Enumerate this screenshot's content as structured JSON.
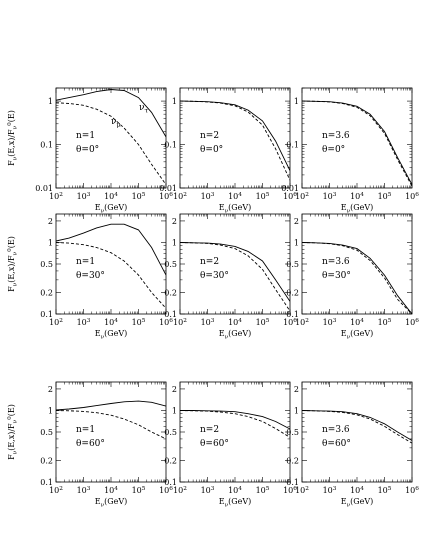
{
  "figure": {
    "row_ylabels": [
      "F_{ν}(E,x)/F_{ν}^0(E)",
      "F_{ν}(E,x)/F_{ν}^0(E)",
      "F_{ν}(E,x)/F_{ν}^0(E)"
    ],
    "xlabel": "E_{ν}(GeV)",
    "curve_labels": {
      "solid": "ν_{τ}",
      "dashed": "ν_{μ}"
    }
  },
  "chart_data": [
    {
      "type": "line",
      "row": 0,
      "col": 0,
      "annotation": [
        "n=1",
        "θ=0°"
      ],
      "show_curve_labels": true,
      "xscale": "log",
      "yscale": "log",
      "xlim": [
        100,
        1000000
      ],
      "ylim": [
        0.01,
        2
      ],
      "xticks": [
        100,
        1000,
        10000,
        100000,
        1000000
      ],
      "xtick_labels": [
        "10^2",
        "10^3",
        "10^4",
        "10^5",
        "10^6"
      ],
      "yticks": [
        0.01,
        0.1,
        1
      ],
      "ytick_labels": [
        "0.01",
        "0.1",
        "1"
      ],
      "series": [
        {
          "name": "ν_{τ}",
          "style": "solid",
          "x": [
            100,
            300,
            1000,
            3000,
            10000,
            30000,
            100000,
            300000,
            1000000
          ],
          "y": [
            1.05,
            1.2,
            1.4,
            1.65,
            1.85,
            1.75,
            1.2,
            0.55,
            0.15
          ]
        },
        {
          "name": "ν_{μ}",
          "style": "dashed",
          "x": [
            100,
            300,
            1000,
            3000,
            10000,
            30000,
            100000,
            300000,
            1000000
          ],
          "y": [
            0.92,
            0.88,
            0.8,
            0.65,
            0.45,
            0.24,
            0.1,
            0.035,
            0.012
          ]
        }
      ]
    },
    {
      "type": "line",
      "row": 0,
      "col": 1,
      "annotation": [
        "n=2",
        "θ=0°"
      ],
      "show_curve_labels": false,
      "xscale": "log",
      "yscale": "log",
      "xlim": [
        100,
        1000000
      ],
      "ylim": [
        0.01,
        2
      ],
      "xticks": [
        100,
        1000,
        10000,
        100000,
        1000000
      ],
      "xtick_labels": [
        "10^2",
        "10^3",
        "10^4",
        "10^5",
        "10^6"
      ],
      "yticks": [
        0.01,
        0.1,
        1
      ],
      "ytick_labels": [
        "0.01",
        "0.1",
        "1"
      ],
      "series": [
        {
          "name": "ν_{τ}",
          "style": "solid",
          "x": [
            100,
            300,
            1000,
            3000,
            10000,
            30000,
            100000,
            300000,
            1000000
          ],
          "y": [
            1.0,
            0.99,
            0.97,
            0.92,
            0.82,
            0.62,
            0.35,
            0.12,
            0.025
          ]
        },
        {
          "name": "ν_{μ}",
          "style": "dashed",
          "x": [
            100,
            300,
            1000,
            3000,
            10000,
            30000,
            100000,
            300000,
            1000000
          ],
          "y": [
            1.0,
            0.99,
            0.96,
            0.9,
            0.78,
            0.56,
            0.28,
            0.08,
            0.015
          ]
        }
      ]
    },
    {
      "type": "line",
      "row": 0,
      "col": 2,
      "annotation": [
        "n=3.6",
        "θ=0°"
      ],
      "show_curve_labels": false,
      "xscale": "log",
      "yscale": "log",
      "xlim": [
        100,
        1000000
      ],
      "ylim": [
        0.01,
        2
      ],
      "xticks": [
        100,
        1000,
        10000,
        100000,
        1000000
      ],
      "xtick_labels": [
        "10^2",
        "10^3",
        "10^4",
        "10^5",
        "10^6"
      ],
      "yticks": [
        0.01,
        0.1,
        1
      ],
      "ytick_labels": [
        "0.01",
        "0.1",
        "1"
      ],
      "series": [
        {
          "name": "ν_{τ}",
          "style": "solid",
          "x": [
            100,
            300,
            1000,
            3000,
            10000,
            30000,
            100000,
            300000,
            1000000
          ],
          "y": [
            1.0,
            0.99,
            0.97,
            0.9,
            0.76,
            0.5,
            0.2,
            0.05,
            0.012
          ]
        },
        {
          "name": "ν_{μ}",
          "style": "dashed",
          "x": [
            100,
            300,
            1000,
            3000,
            10000,
            30000,
            100000,
            300000,
            1000000
          ],
          "y": [
            1.0,
            0.99,
            0.96,
            0.88,
            0.72,
            0.46,
            0.18,
            0.045,
            0.011
          ]
        }
      ]
    },
    {
      "type": "line",
      "row": 1,
      "col": 0,
      "annotation": [
        "n=1",
        "θ=30°"
      ],
      "show_curve_labels": false,
      "xscale": "log",
      "yscale": "log",
      "xlim": [
        100,
        1000000
      ],
      "ylim": [
        0.1,
        2.5
      ],
      "xticks": [
        100,
        1000,
        10000,
        100000,
        1000000
      ],
      "xtick_labels": [
        "10^2",
        "10^3",
        "10^4",
        "10^5",
        "10^6"
      ],
      "yticks": [
        0.1,
        0.2,
        0.5,
        1,
        2
      ],
      "ytick_labels": [
        "0.1",
        "0.2",
        "0.5",
        "1",
        "2"
      ],
      "series": [
        {
          "name": "ν_{τ}",
          "style": "solid",
          "x": [
            100,
            300,
            1000,
            3000,
            10000,
            30000,
            100000,
            300000,
            1000000
          ],
          "y": [
            1.05,
            1.15,
            1.35,
            1.6,
            1.8,
            1.8,
            1.5,
            0.85,
            0.35
          ]
        },
        {
          "name": "ν_{μ}",
          "style": "dashed",
          "x": [
            100,
            300,
            1000,
            3000,
            10000,
            30000,
            100000,
            300000,
            1000000
          ],
          "y": [
            1.0,
            0.98,
            0.93,
            0.85,
            0.72,
            0.55,
            0.35,
            0.2,
            0.12
          ]
        }
      ]
    },
    {
      "type": "line",
      "row": 1,
      "col": 1,
      "annotation": [
        "n=2",
        "θ=30°"
      ],
      "show_curve_labels": false,
      "xscale": "log",
      "yscale": "log",
      "xlim": [
        100,
        1000000
      ],
      "ylim": [
        0.1,
        2.5
      ],
      "xticks": [
        100,
        1000,
        10000,
        100000,
        1000000
      ],
      "xtick_labels": [
        "10^2",
        "10^3",
        "10^4",
        "10^5",
        "10^6"
      ],
      "yticks": [
        0.1,
        0.2,
        0.5,
        1,
        2
      ],
      "ytick_labels": [
        "0.1",
        "0.2",
        "0.5",
        "1",
        "2"
      ],
      "series": [
        {
          "name": "ν_{τ}",
          "style": "solid",
          "x": [
            100,
            300,
            1000,
            3000,
            10000,
            30000,
            100000,
            300000,
            1000000
          ],
          "y": [
            1.0,
            0.99,
            0.98,
            0.95,
            0.88,
            0.75,
            0.55,
            0.3,
            0.15
          ]
        },
        {
          "name": "ν_{μ}",
          "style": "dashed",
          "x": [
            100,
            300,
            1000,
            3000,
            10000,
            30000,
            100000,
            300000,
            1000000
          ],
          "y": [
            1.0,
            0.99,
            0.97,
            0.92,
            0.82,
            0.65,
            0.42,
            0.22,
            0.11
          ]
        }
      ]
    },
    {
      "type": "line",
      "row": 1,
      "col": 2,
      "annotation": [
        "n=3.6",
        "θ=30°"
      ],
      "show_curve_labels": false,
      "xscale": "log",
      "yscale": "log",
      "xlim": [
        100,
        1000000
      ],
      "ylim": [
        0.1,
        2.5
      ],
      "xticks": [
        100,
        1000,
        10000,
        100000,
        1000000
      ],
      "xtick_labels": [
        "10^2",
        "10^3",
        "10^4",
        "10^5",
        "10^6"
      ],
      "yticks": [
        0.1,
        0.2,
        0.5,
        1,
        2
      ],
      "ytick_labels": [
        "0.1",
        "0.2",
        "0.5",
        "1",
        "2"
      ],
      "series": [
        {
          "name": "ν_{τ}",
          "style": "solid",
          "x": [
            100,
            300,
            1000,
            3000,
            10000,
            30000,
            100000,
            300000,
            1000000
          ],
          "y": [
            1.0,
            0.99,
            0.97,
            0.92,
            0.82,
            0.6,
            0.35,
            0.18,
            0.1
          ]
        },
        {
          "name": "ν_{μ}",
          "style": "dashed",
          "x": [
            100,
            300,
            1000,
            3000,
            10000,
            30000,
            100000,
            300000,
            1000000
          ],
          "y": [
            1.0,
            0.99,
            0.96,
            0.9,
            0.78,
            0.56,
            0.32,
            0.16,
            0.1
          ]
        }
      ]
    },
    {
      "type": "line",
      "row": 2,
      "col": 0,
      "annotation": [
        "n=1",
        "θ=60°"
      ],
      "show_curve_labels": false,
      "xscale": "log",
      "yscale": "log",
      "xlim": [
        100,
        1000000
      ],
      "ylim": [
        0.1,
        2.5
      ],
      "xticks": [
        100,
        1000,
        10000,
        100000,
        1000000
      ],
      "xtick_labels": [
        "10^2",
        "10^3",
        "10^4",
        "10^5",
        "10^6"
      ],
      "yticks": [
        0.1,
        0.2,
        0.5,
        1,
        2
      ],
      "ytick_labels": [
        "0.1",
        "0.2",
        "0.5",
        "1",
        "2"
      ],
      "series": [
        {
          "name": "ν_{τ}",
          "style": "solid",
          "x": [
            100,
            300,
            1000,
            3000,
            10000,
            30000,
            100000,
            300000,
            1000000
          ],
          "y": [
            1.02,
            1.05,
            1.1,
            1.17,
            1.25,
            1.32,
            1.35,
            1.3,
            1.15
          ]
        },
        {
          "name": "ν_{μ}",
          "style": "dashed",
          "x": [
            100,
            300,
            1000,
            3000,
            10000,
            30000,
            100000,
            300000,
            1000000
          ],
          "y": [
            1.0,
            0.99,
            0.97,
            0.93,
            0.86,
            0.76,
            0.63,
            0.5,
            0.4
          ]
        }
      ]
    },
    {
      "type": "line",
      "row": 2,
      "col": 1,
      "annotation": [
        "n=2",
        "θ=60°"
      ],
      "show_curve_labels": false,
      "xscale": "log",
      "yscale": "log",
      "xlim": [
        100,
        1000000
      ],
      "ylim": [
        0.1,
        2.5
      ],
      "xticks": [
        100,
        1000,
        10000,
        100000,
        1000000
      ],
      "xtick_labels": [
        "10^2",
        "10^3",
        "10^4",
        "10^5",
        "10^6"
      ],
      "yticks": [
        0.1,
        0.2,
        0.5,
        1,
        2
      ],
      "ytick_labels": [
        "0.1",
        "0.2",
        "0.5",
        "1",
        "2"
      ],
      "series": [
        {
          "name": "ν_{τ}",
          "style": "solid",
          "x": [
            100,
            300,
            1000,
            3000,
            10000,
            30000,
            100000,
            300000,
            1000000
          ],
          "y": [
            1.0,
            1.0,
            0.99,
            0.98,
            0.96,
            0.9,
            0.82,
            0.7,
            0.55
          ]
        },
        {
          "name": "ν_{μ}",
          "style": "dashed",
          "x": [
            100,
            300,
            1000,
            3000,
            10000,
            30000,
            100000,
            300000,
            1000000
          ],
          "y": [
            1.0,
            0.99,
            0.98,
            0.95,
            0.9,
            0.82,
            0.7,
            0.56,
            0.42
          ]
        }
      ]
    },
    {
      "type": "line",
      "row": 2,
      "col": 2,
      "annotation": [
        "n=3.6",
        "θ=60°"
      ],
      "show_curve_labels": false,
      "xscale": "log",
      "yscale": "log",
      "xlim": [
        100,
        1000000
      ],
      "ylim": [
        0.1,
        2.5
      ],
      "xticks": [
        100,
        1000,
        10000,
        100000,
        1000000
      ],
      "xtick_labels": [
        "10^2",
        "10^3",
        "10^4",
        "10^5",
        "10^6"
      ],
      "yticks": [
        0.1,
        0.2,
        0.5,
        1,
        2
      ],
      "ytick_labels": [
        "0.1",
        "0.2",
        "0.5",
        "1",
        "2"
      ],
      "series": [
        {
          "name": "ν_{τ}",
          "style": "solid",
          "x": [
            100,
            300,
            1000,
            3000,
            10000,
            30000,
            100000,
            300000,
            1000000
          ],
          "y": [
            1.0,
            0.99,
            0.98,
            0.96,
            0.9,
            0.8,
            0.65,
            0.5,
            0.38
          ]
        },
        {
          "name": "ν_{μ}",
          "style": "dashed",
          "x": [
            100,
            300,
            1000,
            3000,
            10000,
            30000,
            100000,
            300000,
            1000000
          ],
          "y": [
            1.0,
            0.99,
            0.97,
            0.94,
            0.87,
            0.76,
            0.6,
            0.46,
            0.35
          ]
        }
      ]
    }
  ]
}
